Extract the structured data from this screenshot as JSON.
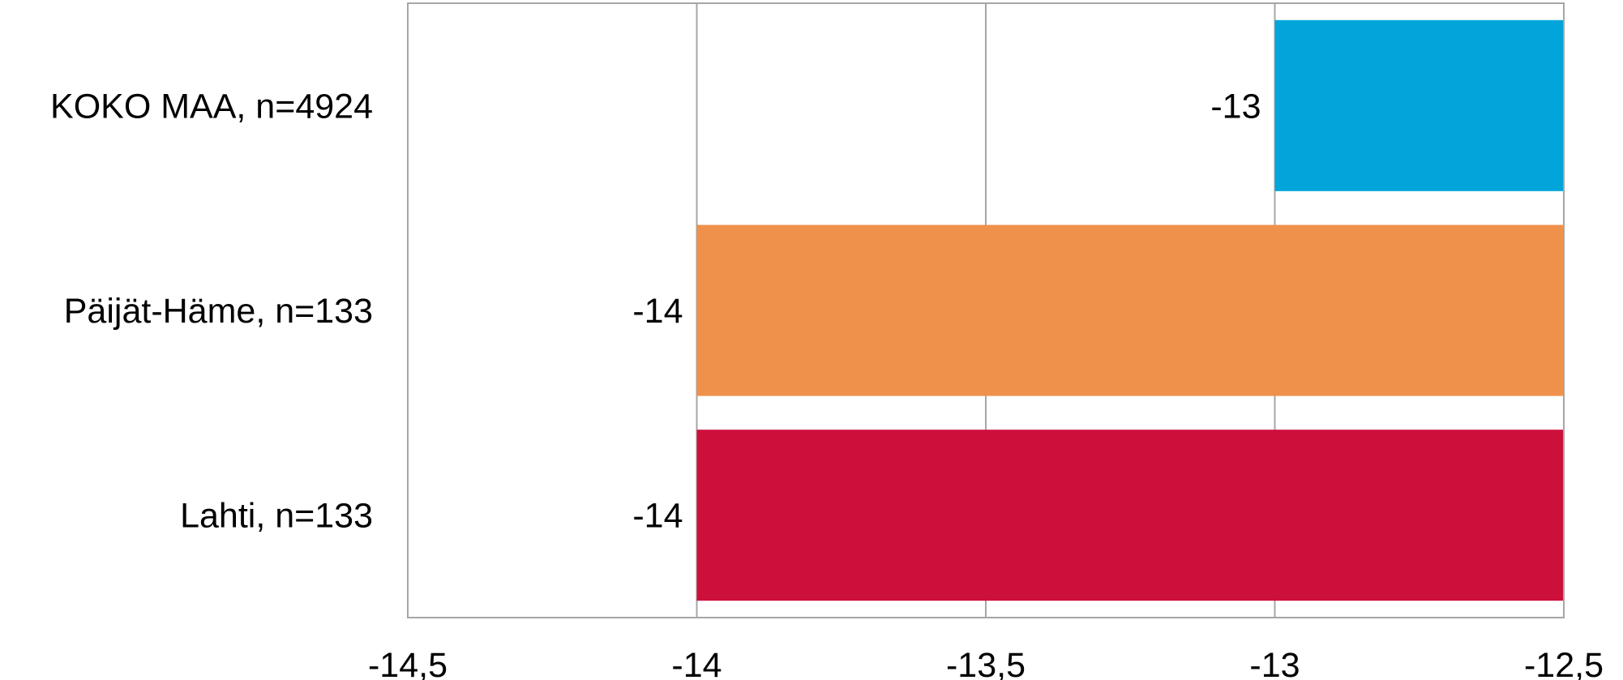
{
  "chart_data": {
    "type": "bar",
    "orientation": "horizontal",
    "categories": [
      "KOKO MAA, n=4924",
      "Päijät-Häme, n=133",
      "Lahti, n=133"
    ],
    "values": [
      -13,
      -14,
      -14
    ],
    "value_labels": [
      "-13",
      "-14",
      "-14"
    ],
    "colors": [
      "#02A5DA",
      "#EF904B",
      "#CD0F3C"
    ],
    "xlim": [
      -14.5,
      -12.5
    ],
    "xticks": [
      -14.5,
      -14,
      -13.5,
      -13,
      -12.5
    ],
    "xtick_labels": [
      "-14,5",
      "-14",
      "-13,5",
      "-13",
      "-12,5"
    ],
    "grid": true,
    "legend": "none",
    "title": "",
    "xlabel": "",
    "ylabel": ""
  }
}
